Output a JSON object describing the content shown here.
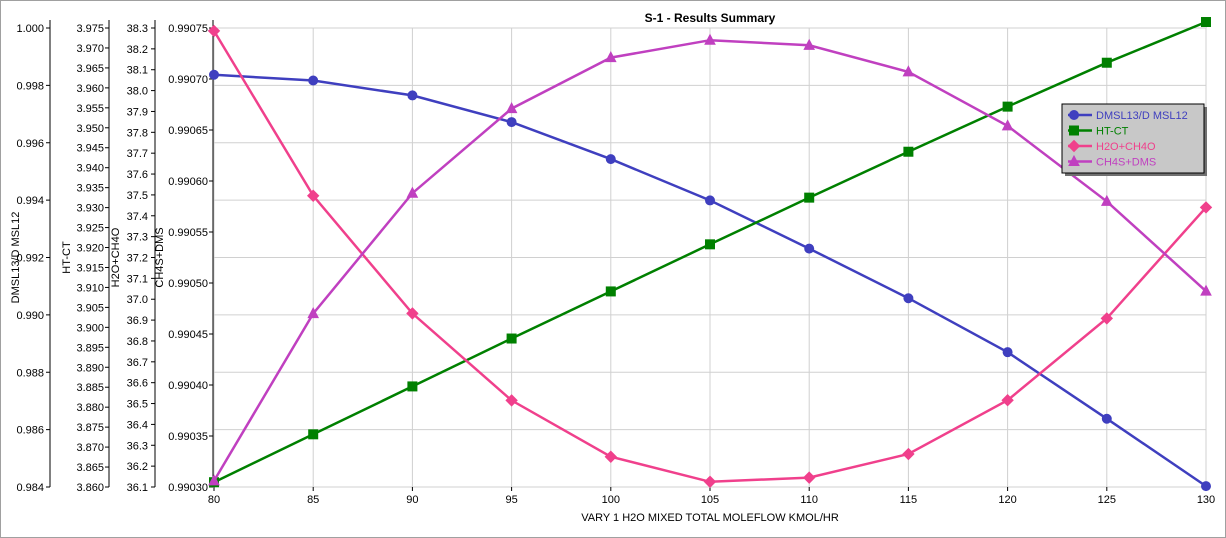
{
  "chart_data": {
    "type": "line",
    "title": "S-1 - Results Summary",
    "xlabel": "VARY  1 H2O     MIXED    TOTAL MOLEFLOW   KMOL/HR",
    "x": [
      80,
      85,
      90,
      95,
      100,
      105,
      110,
      115,
      120,
      125,
      130
    ],
    "xlim": [
      80,
      130
    ],
    "xticks": [
      "80",
      "85",
      "90",
      "95",
      "100",
      "105",
      "110",
      "115",
      "120",
      "125",
      "130"
    ],
    "grid": true,
    "legend_position": "right",
    "axes": [
      {
        "id": "dmsl",
        "label": "DMSL13/D MSL12",
        "ylim": [
          0.984,
          1.0
        ],
        "ticks": [
          "0.984",
          "0.986",
          "0.988",
          "0.990",
          "0.992",
          "0.994",
          "0.996",
          "0.998",
          "1.000"
        ]
      },
      {
        "id": "htct",
        "label": "HT-CT",
        "ylim": [
          3.86,
          3.975
        ],
        "ticks": [
          "3.860",
          "3.865",
          "3.870",
          "3.875",
          "3.880",
          "3.885",
          "3.890",
          "3.895",
          "3.900",
          "3.905",
          "3.910",
          "3.915",
          "3.920",
          "3.925",
          "3.930",
          "3.935",
          "3.940",
          "3.945",
          "3.950",
          "3.955",
          "3.960",
          "3.965",
          "3.970",
          "3.975"
        ]
      },
      {
        "id": "h2o",
        "label": "H2O+CH4O",
        "ylim": [
          36.1,
          38.3
        ],
        "ticks": [
          "36.1",
          "36.2",
          "36.3",
          "36.4",
          "36.5",
          "36.6",
          "36.7",
          "36.8",
          "36.9",
          "37.0",
          "37.1",
          "37.2",
          "37.3",
          "37.4",
          "37.5",
          "37.6",
          "37.7",
          "37.8",
          "37.9",
          "38.0",
          "38.1",
          "38.2",
          "38.3"
        ]
      },
      {
        "id": "ch4s",
        "label": "CH4S+DMS",
        "ylim": [
          0.9903,
          0.99075
        ],
        "ticks": [
          "0.99030",
          "0.99035",
          "0.99040",
          "0.99045",
          "0.99050",
          "0.99055",
          "0.99060",
          "0.99065",
          "0.99070",
          "0.99075"
        ]
      }
    ],
    "series": [
      {
        "name": "DMSL13/D MSL12",
        "axis": "dmsl",
        "color": "#3f3fbf",
        "marker": "circle",
        "values": [
          0.99837,
          0.99817,
          0.99765,
          0.99672,
          0.99543,
          0.99399,
          0.99231,
          0.99058,
          0.9887,
          0.98638,
          0.98403
        ]
      },
      {
        "name": "HT-CT",
        "axis": "htct",
        "color": "#008000",
        "marker": "square",
        "values": [
          3.8612,
          3.8732,
          3.8852,
          3.8972,
          3.909,
          3.9208,
          3.9325,
          3.944,
          3.9553,
          3.9663,
          3.9765
        ]
      },
      {
        "name": "H2O+CH4O",
        "axis": "h2o",
        "color": "#f0408c",
        "marker": "diamond",
        "values": [
          38.286,
          37.496,
          36.932,
          36.515,
          36.245,
          36.125,
          36.145,
          36.258,
          36.516,
          36.908,
          37.44
        ]
      },
      {
        "name": "CH4S+DMS",
        "axis": "ch4s",
        "color": "#c040c0",
        "marker": "triangle",
        "values": [
          0.990306,
          0.99047,
          0.990588,
          0.990671,
          0.990721,
          0.990738,
          0.990733,
          0.990707,
          0.990654,
          0.99058,
          0.990492
        ]
      }
    ]
  }
}
